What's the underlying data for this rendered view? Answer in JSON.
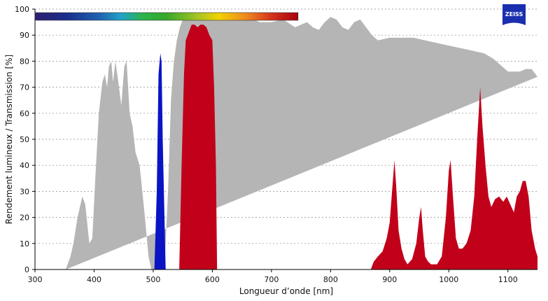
{
  "brand": {
    "logo_text": "ZEISS",
    "logo_color": "#1a2fb0"
  },
  "chart_data": {
    "type": "area",
    "xlabel": "Longueur d’onde [nm]",
    "ylabel": "Rendement lumineux / Transmission [%]",
    "xlim": [
      300,
      1150
    ],
    "ylim": [
      0,
      100
    ],
    "x_ticks": [
      300,
      400,
      500,
      600,
      700,
      800,
      900,
      1000,
      1100
    ],
    "y_ticks": [
      0,
      10,
      20,
      30,
      40,
      50,
      60,
      70,
      80,
      90,
      100
    ],
    "x_tick_labels": [
      "300",
      "400",
      "500",
      "600",
      "700",
      "800",
      "900",
      "1000",
      "1100"
    ],
    "y_tick_labels": [
      "0",
      "10",
      "20",
      "30",
      "40",
      "50",
      "60",
      "70",
      "80",
      "90",
      "100"
    ],
    "grid": "horizontal-dotted",
    "spectrum_bar": {
      "range_nm": [
        300,
        745
      ]
    },
    "series": [
      {
        "color": "#b5b5b5",
        "points": [
          [
            352,
            0
          ],
          [
            360,
            5
          ],
          [
            365,
            10
          ],
          [
            372,
            20
          ],
          [
            380,
            28
          ],
          [
            385,
            25
          ],
          [
            392,
            10
          ],
          [
            397,
            12
          ],
          [
            402,
            35
          ],
          [
            408,
            60
          ],
          [
            414,
            72
          ],
          [
            418,
            75
          ],
          [
            422,
            70
          ],
          [
            425,
            78
          ],
          [
            429,
            80
          ],
          [
            432,
            72
          ],
          [
            436,
            80
          ],
          [
            441,
            72
          ],
          [
            446,
            63
          ],
          [
            451,
            78
          ],
          [
            455,
            80
          ],
          [
            460,
            60
          ],
          [
            465,
            55
          ],
          [
            470,
            45
          ],
          [
            477,
            40
          ],
          [
            486,
            20
          ],
          [
            492,
            5
          ],
          [
            497,
            0
          ],
          [
            510,
            0
          ],
          [
            520,
            5
          ],
          [
            525,
            30
          ],
          [
            530,
            65
          ],
          [
            535,
            80
          ],
          [
            540,
            88
          ],
          [
            545,
            93
          ],
          [
            550,
            96
          ],
          [
            555,
            97
          ],
          [
            560,
            98
          ],
          [
            580,
            98
          ],
          [
            600,
            97
          ],
          [
            620,
            97
          ],
          [
            640,
            98
          ],
          [
            660,
            97
          ],
          [
            680,
            95
          ],
          [
            700,
            95
          ],
          [
            720,
            96
          ],
          [
            740,
            93
          ],
          [
            750,
            94
          ],
          [
            760,
            95
          ],
          [
            770,
            93
          ],
          [
            780,
            92
          ],
          [
            790,
            95
          ],
          [
            800,
            97
          ],
          [
            810,
            96
          ],
          [
            820,
            93
          ],
          [
            830,
            92
          ],
          [
            840,
            95
          ],
          [
            850,
            96
          ],
          [
            860,
            93
          ],
          [
            870,
            90
          ],
          [
            880,
            88
          ],
          [
            900,
            89
          ],
          [
            920,
            89
          ],
          [
            940,
            89
          ],
          [
            960,
            88
          ],
          [
            980,
            87
          ],
          [
            1000,
            86
          ],
          [
            1020,
            85
          ],
          [
            1040,
            84
          ],
          [
            1060,
            83
          ],
          [
            1075,
            81
          ],
          [
            1090,
            78
          ],
          [
            1100,
            76
          ],
          [
            1110,
            76
          ],
          [
            1120,
            76
          ],
          [
            1130,
            77
          ],
          [
            1140,
            77
          ],
          [
            1150,
            74
          ]
        ]
      },
      {
        "color": "#0a14c4",
        "points": [
          [
            502,
            0
          ],
          [
            506,
            30
          ],
          [
            509,
            75
          ],
          [
            512,
            83
          ],
          [
            514,
            80
          ],
          [
            516,
            50
          ],
          [
            519,
            20
          ],
          [
            521,
            0
          ]
        ]
      },
      {
        "color": "#c1001a",
        "points": [
          [
            544,
            0
          ],
          [
            548,
            40
          ],
          [
            552,
            75
          ],
          [
            555,
            88
          ],
          [
            560,
            91
          ],
          [
            565,
            94
          ],
          [
            570,
            94
          ],
          [
            575,
            93
          ],
          [
            580,
            94
          ],
          [
            585,
            94
          ],
          [
            590,
            93
          ],
          [
            595,
            90
          ],
          [
            600,
            88
          ],
          [
            603,
            70
          ],
          [
            606,
            40
          ],
          [
            608,
            0
          ],
          [
            868,
            0
          ],
          [
            873,
            3
          ],
          [
            880,
            5
          ],
          [
            888,
            7
          ],
          [
            895,
            12
          ],
          [
            900,
            18
          ],
          [
            904,
            30
          ],
          [
            908,
            42
          ],
          [
            911,
            32
          ],
          [
            915,
            15
          ],
          [
            920,
            8
          ],
          [
            925,
            4
          ],
          [
            930,
            2
          ],
          [
            938,
            4
          ],
          [
            945,
            10
          ],
          [
            950,
            20
          ],
          [
            953,
            24
          ],
          [
            956,
            15
          ],
          [
            960,
            5
          ],
          [
            965,
            3
          ],
          [
            970,
            2
          ],
          [
            980,
            2
          ],
          [
            988,
            5
          ],
          [
            995,
            20
          ],
          [
            1000,
            38
          ],
          [
            1003,
            42
          ],
          [
            1007,
            28
          ],
          [
            1012,
            12
          ],
          [
            1017,
            8
          ],
          [
            1023,
            8
          ],
          [
            1030,
            10
          ],
          [
            1037,
            15
          ],
          [
            1043,
            28
          ],
          [
            1048,
            50
          ],
          [
            1053,
            70
          ],
          [
            1057,
            55
          ],
          [
            1062,
            40
          ],
          [
            1067,
            28
          ],
          [
            1072,
            24
          ],
          [
            1078,
            27
          ],
          [
            1085,
            28
          ],
          [
            1092,
            26
          ],
          [
            1098,
            28
          ],
          [
            1104,
            25
          ],
          [
            1110,
            22
          ],
          [
            1115,
            28
          ],
          [
            1120,
            30
          ],
          [
            1125,
            34
          ],
          [
            1130,
            34
          ],
          [
            1135,
            28
          ],
          [
            1140,
            15
          ],
          [
            1146,
            8
          ],
          [
            1150,
            5
          ],
          [
            1150,
            0
          ]
        ]
      }
    ]
  }
}
